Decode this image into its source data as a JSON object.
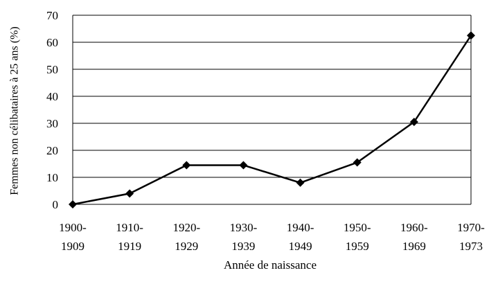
{
  "chart_data": {
    "type": "line",
    "x_label": "Année de naissance",
    "y_label": "Femmes non célibataires à 25 ans (%)",
    "categories": [
      "1900-1909",
      "1910-1919",
      "1920-1929",
      "1930-1939",
      "1940-1949",
      "1950-1959",
      "1960-1969",
      "1970-1973"
    ],
    "series": [
      {
        "name": "Femmes non célibataires à 25 ans",
        "color": "#000000",
        "values": [
          0,
          4,
          14.5,
          14.5,
          8,
          15.5,
          30.5,
          62.5
        ]
      }
    ],
    "ylim": [
      0,
      70
    ],
    "yticks": [
      0,
      10,
      20,
      30,
      40,
      50,
      60,
      70
    ],
    "grid": true
  }
}
